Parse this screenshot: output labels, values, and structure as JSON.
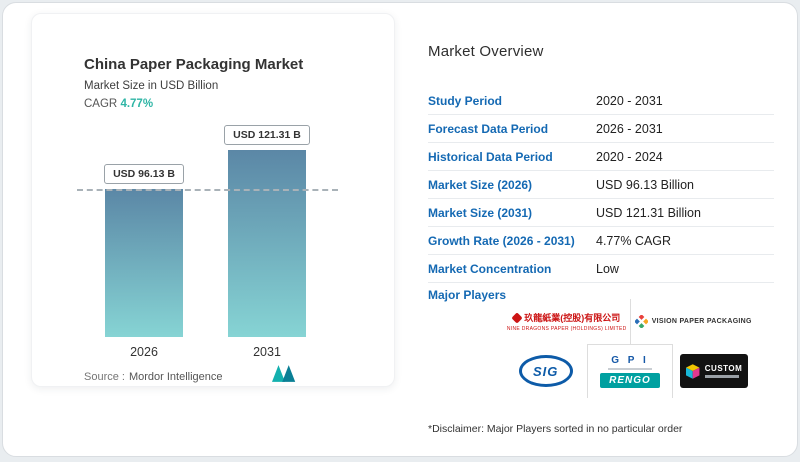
{
  "colors": {
    "accent_teal": "#2eb5a5",
    "label_blue": "#1469b3",
    "bar_gradient_top": "#5b87a6",
    "bar_gradient_bottom": "#86d4d4"
  },
  "chart": {
    "title": "China Paper Packaging Market",
    "subtitle": "Market Size in USD Billion",
    "cagr_label": "CAGR",
    "cagr_value": "4.77%",
    "source_label": "Source :",
    "source_value": "Mordor Intelligence"
  },
  "chart_data": {
    "type": "bar",
    "title": "China Paper Packaging Market",
    "ylabel": "Market Size in USD Billion",
    "categories": [
      "2026",
      "2031"
    ],
    "values": [
      96.13,
      121.31
    ],
    "data_labels": [
      "USD 96.13 B",
      "USD 121.31 B"
    ],
    "cagr_pct": 4.77,
    "reference_line": {
      "style": "dashed",
      "at_value": 96.13
    },
    "legend": "none",
    "grid": "off"
  },
  "overview": {
    "title": "Market Overview",
    "rows": [
      {
        "label": "Study Period",
        "value": "2020 - 2031"
      },
      {
        "label": "Forecast Data Period",
        "value": "2026 - 2031"
      },
      {
        "label": "Historical Data Period",
        "value": "2020 - 2024"
      },
      {
        "label": "Market Size (2026)",
        "value": "USD 96.13 Billion"
      },
      {
        "label": "Market Size (2031)",
        "value": "USD 121.31 Billion"
      },
      {
        "label": "Growth Rate (2026 - 2031)",
        "value": "4.77% CAGR"
      },
      {
        "label": "Market Concentration",
        "value": "Low"
      }
    ],
    "major_players_label": "Major Players",
    "disclaimer": "*Disclaimer: Major Players sorted in no particular order"
  },
  "players": {
    "nine_dragons_cn": "玖龍紙業(控股)有限公司",
    "nine_dragons_en": "NINE DRAGONS PAPER (HOLDINGS) LIMITED",
    "vision": "VISION PAPER PACKAGING",
    "sig": "SIG",
    "gpi": "G P I",
    "rengo": "RENGO",
    "custom": "CUSTOM"
  }
}
